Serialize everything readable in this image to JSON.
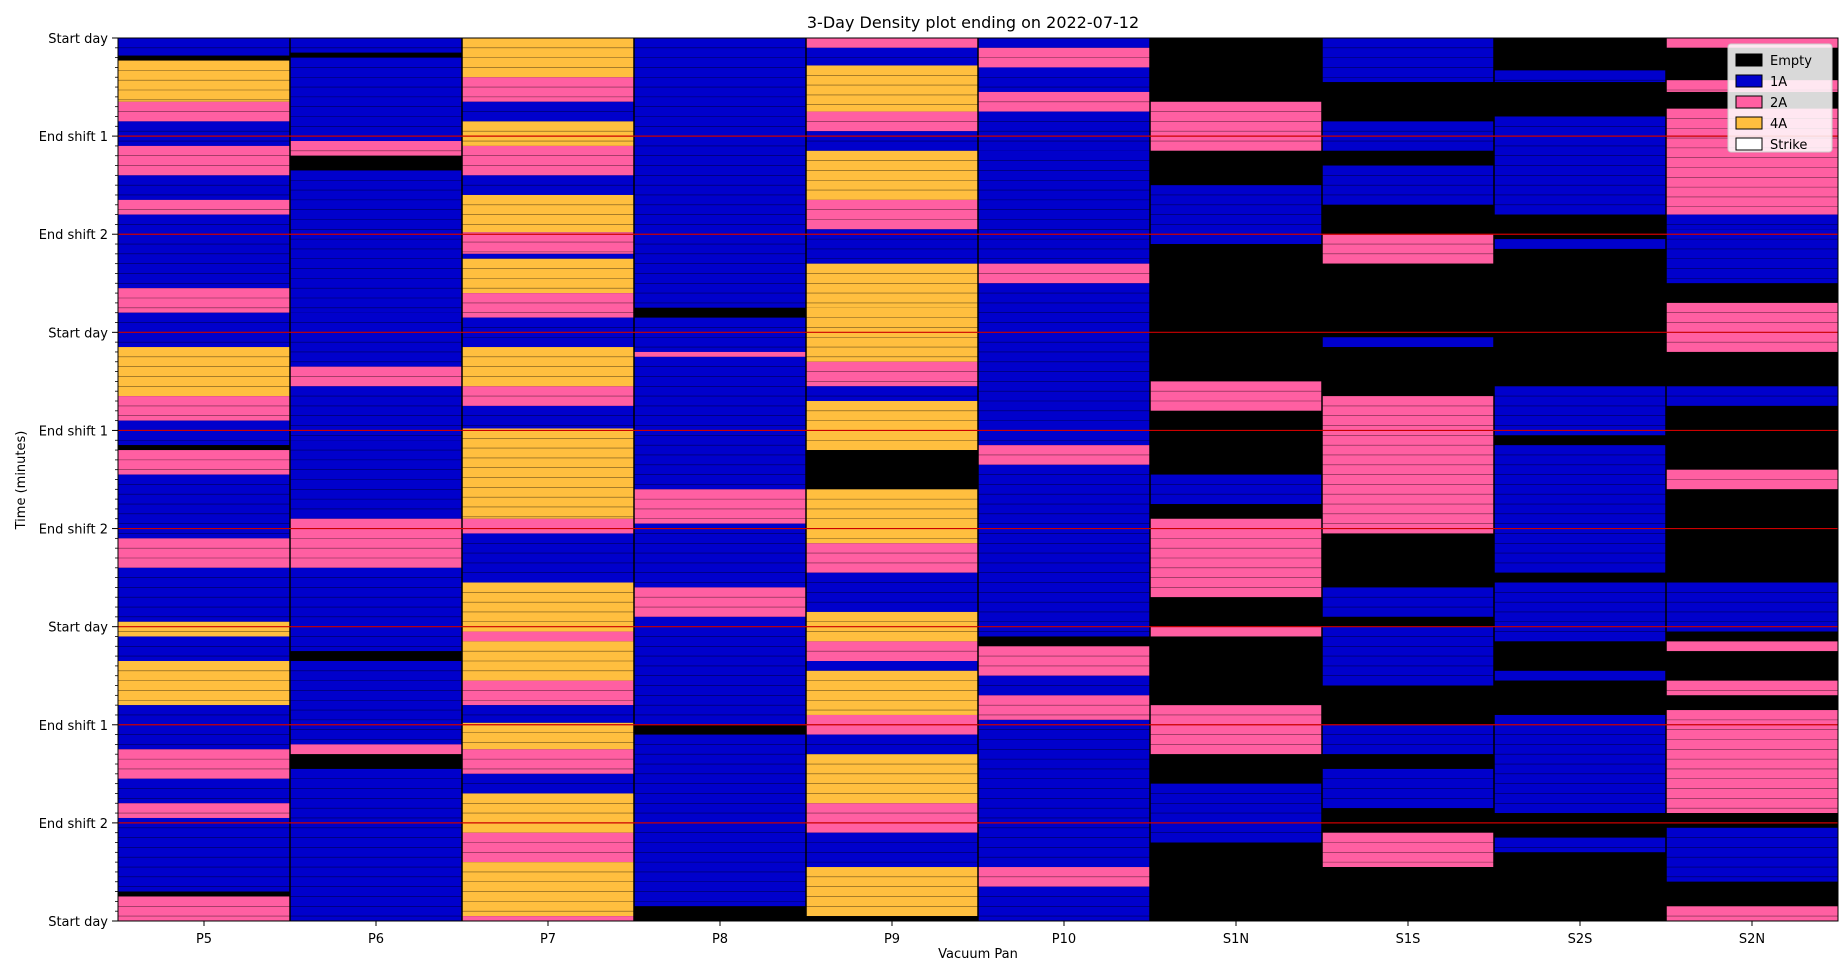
{
  "chart_data": {
    "type": "heatmap",
    "title": "3-Day Density plot ending on 2022-07-12",
    "xlabel": "Vacuum Pan",
    "ylabel": "Time (minutes)",
    "categories": [
      "P5",
      "P6",
      "P7",
      "P8",
      "P9",
      "P10",
      "S1N",
      "S1S",
      "S2S",
      "S2N"
    ],
    "y_tick_labels": [
      "Start day",
      "End shift 1",
      "End shift 2",
      "Start day",
      "End shift 1",
      "End shift 2",
      "Start day",
      "End shift 1",
      "End shift 2",
      "Start day"
    ],
    "ylim": [
      0,
      9
    ],
    "legend": {
      "position": "top-right",
      "entries": [
        {
          "label": "Empty",
          "color": "#000000"
        },
        {
          "label": "1A",
          "color": "#0000cc"
        },
        {
          "label": "2A",
          "color": "#ff5fa2"
        },
        {
          "label": "4A",
          "color": "#ffbf3f"
        },
        {
          "label": "Strike",
          "color": "#ffffff"
        }
      ]
    },
    "shift_line_color": "#cc0000",
    "series": [
      {
        "column": "P5",
        "segments": [
          [
            0,
            0.18,
            "1A"
          ],
          [
            0.18,
            0.23,
            "Empty"
          ],
          [
            0.23,
            0.65,
            "4A"
          ],
          [
            0.65,
            0.85,
            "2A"
          ],
          [
            0.85,
            1.1,
            "1A"
          ],
          [
            1.1,
            1.4,
            "2A"
          ],
          [
            1.4,
            1.65,
            "1A"
          ],
          [
            1.65,
            1.8,
            "2A"
          ],
          [
            1.8,
            2.55,
            "1A"
          ],
          [
            2.55,
            2.8,
            "2A"
          ],
          [
            2.8,
            3.15,
            "1A"
          ],
          [
            3.15,
            3.65,
            "4A"
          ],
          [
            3.65,
            3.9,
            "2A"
          ],
          [
            3.9,
            4.15,
            "1A"
          ],
          [
            4.15,
            4.2,
            "Empty"
          ],
          [
            4.2,
            4.45,
            "2A"
          ],
          [
            4.45,
            5.1,
            "1A"
          ],
          [
            5.1,
            5.4,
            "2A"
          ],
          [
            5.4,
            5.95,
            "1A"
          ],
          [
            5.95,
            6.1,
            "4A"
          ],
          [
            6.1,
            6.35,
            "1A"
          ],
          [
            6.35,
            6.8,
            "4A"
          ],
          [
            6.8,
            7.25,
            "1A"
          ],
          [
            7.25,
            7.55,
            "2A"
          ],
          [
            7.55,
            7.8,
            "1A"
          ],
          [
            7.8,
            7.95,
            "2A"
          ],
          [
            7.95,
            8.7,
            "1A"
          ],
          [
            8.7,
            8.75,
            "Empty"
          ],
          [
            8.75,
            9,
            "2A"
          ]
        ]
      },
      {
        "column": "P6",
        "segments": [
          [
            0,
            0.15,
            "1A"
          ],
          [
            0.15,
            0.2,
            "Empty"
          ],
          [
            0.2,
            1.05,
            "1A"
          ],
          [
            1.05,
            1.2,
            "2A"
          ],
          [
            1.2,
            1.35,
            "Empty"
          ],
          [
            1.35,
            2.8,
            "1A"
          ],
          [
            2.8,
            3.35,
            "1A"
          ],
          [
            3.35,
            3.55,
            "2A"
          ],
          [
            3.55,
            4.1,
            "1A"
          ],
          [
            4.1,
            4.9,
            "1A"
          ],
          [
            4.9,
            5.4,
            "2A"
          ],
          [
            5.4,
            6.25,
            "1A"
          ],
          [
            6.25,
            6.35,
            "Empty"
          ],
          [
            6.35,
            7.2,
            "1A"
          ],
          [
            7.2,
            7.3,
            "2A"
          ],
          [
            7.3,
            7.45,
            "Empty"
          ],
          [
            7.45,
            9,
            "1A"
          ]
        ]
      },
      {
        "column": "P7",
        "segments": [
          [
            0,
            0.4,
            "4A"
          ],
          [
            0.4,
            0.65,
            "2A"
          ],
          [
            0.65,
            0.85,
            "1A"
          ],
          [
            0.85,
            1.1,
            "4A"
          ],
          [
            1.1,
            1.4,
            "2A"
          ],
          [
            1.4,
            1.6,
            "1A"
          ],
          [
            1.6,
            1.98,
            "4A"
          ],
          [
            1.98,
            2.2,
            "2A"
          ],
          [
            2.2,
            2.25,
            "1A"
          ],
          [
            2.25,
            2.6,
            "4A"
          ],
          [
            2.6,
            2.85,
            "2A"
          ],
          [
            2.85,
            3.15,
            "1A"
          ],
          [
            3.15,
            3.55,
            "4A"
          ],
          [
            3.55,
            3.75,
            "2A"
          ],
          [
            3.75,
            3.98,
            "1A"
          ],
          [
            3.98,
            4.9,
            "4A"
          ],
          [
            4.9,
            5.05,
            "2A"
          ],
          [
            5.05,
            5.55,
            "1A"
          ],
          [
            5.55,
            6.05,
            "4A"
          ],
          [
            6.05,
            6.15,
            "2A"
          ],
          [
            6.15,
            6.55,
            "4A"
          ],
          [
            6.55,
            6.8,
            "2A"
          ],
          [
            6.8,
            6.98,
            "1A"
          ],
          [
            6.98,
            7.25,
            "4A"
          ],
          [
            7.25,
            7.5,
            "2A"
          ],
          [
            7.5,
            7.7,
            "1A"
          ],
          [
            7.7,
            8.1,
            "4A"
          ],
          [
            8.1,
            8.4,
            "2A"
          ],
          [
            8.4,
            8.95,
            "4A"
          ],
          [
            8.95,
            9,
            "2A"
          ]
        ]
      },
      {
        "column": "P8",
        "segments": [
          [
            0,
            2.75,
            "1A"
          ],
          [
            2.75,
            2.85,
            "Empty"
          ],
          [
            2.85,
            3.2,
            "1A"
          ],
          [
            3.2,
            3.25,
            "2A"
          ],
          [
            3.25,
            4.6,
            "1A"
          ],
          [
            4.6,
            4.95,
            "2A"
          ],
          [
            4.95,
            5.6,
            "1A"
          ],
          [
            5.6,
            5.9,
            "2A"
          ],
          [
            5.9,
            7.0,
            "1A"
          ],
          [
            7.0,
            7.1,
            "Empty"
          ],
          [
            7.1,
            8.85,
            "1A"
          ],
          [
            8.85,
            9,
            "Empty"
          ]
        ]
      },
      {
        "column": "P9",
        "segments": [
          [
            0,
            0.1,
            "2A"
          ],
          [
            0.1,
            0.28,
            "1A"
          ],
          [
            0.28,
            0.75,
            "4A"
          ],
          [
            0.75,
            0.95,
            "2A"
          ],
          [
            0.95,
            1.15,
            "1A"
          ],
          [
            1.15,
            1.65,
            "4A"
          ],
          [
            1.65,
            1.95,
            "2A"
          ],
          [
            1.95,
            2.3,
            "1A"
          ],
          [
            2.3,
            2.75,
            "4A"
          ],
          [
            2.75,
            3.3,
            "4A"
          ],
          [
            3.3,
            3.55,
            "2A"
          ],
          [
            3.55,
            3.7,
            "1A"
          ],
          [
            3.7,
            4.2,
            "4A"
          ],
          [
            4.2,
            4.6,
            "Empty"
          ],
          [
            4.6,
            5.15,
            "4A"
          ],
          [
            5.15,
            5.45,
            "2A"
          ],
          [
            5.45,
            5.85,
            "1A"
          ],
          [
            5.85,
            6.15,
            "4A"
          ],
          [
            6.15,
            6.35,
            "2A"
          ],
          [
            6.35,
            6.45,
            "1A"
          ],
          [
            6.45,
            6.9,
            "4A"
          ],
          [
            6.9,
            7.1,
            "2A"
          ],
          [
            7.1,
            7.3,
            "1A"
          ],
          [
            7.3,
            7.8,
            "4A"
          ],
          [
            7.8,
            8.1,
            "2A"
          ],
          [
            8.1,
            8.45,
            "1A"
          ],
          [
            8.45,
            8.95,
            "4A"
          ],
          [
            8.95,
            9,
            "Empty"
          ]
        ]
      },
      {
        "column": "P10",
        "segments": [
          [
            0,
            0.1,
            "1A"
          ],
          [
            0.1,
            0.3,
            "2A"
          ],
          [
            0.3,
            0.55,
            "1A"
          ],
          [
            0.55,
            0.75,
            "2A"
          ],
          [
            0.75,
            1.15,
            "1A"
          ],
          [
            1.15,
            2.3,
            "1A"
          ],
          [
            2.3,
            2.5,
            "2A"
          ],
          [
            2.5,
            4.15,
            "1A"
          ],
          [
            4.15,
            4.35,
            "2A"
          ],
          [
            4.35,
            6.1,
            "1A"
          ],
          [
            6.1,
            6.2,
            "Empty"
          ],
          [
            6.2,
            6.5,
            "2A"
          ],
          [
            6.5,
            6.7,
            "1A"
          ],
          [
            6.7,
            6.95,
            "2A"
          ],
          [
            6.95,
            8.45,
            "1A"
          ],
          [
            8.45,
            8.65,
            "2A"
          ],
          [
            8.65,
            9,
            "1A"
          ]
        ]
      },
      {
        "column": "S1N",
        "segments": [
          [
            0,
            0.65,
            "Empty"
          ],
          [
            0.65,
            1.15,
            "2A"
          ],
          [
            1.15,
            1.5,
            "Empty"
          ],
          [
            1.5,
            2.1,
            "1A"
          ],
          [
            2.1,
            3.5,
            "Empty"
          ],
          [
            3.5,
            3.8,
            "2A"
          ],
          [
            3.8,
            4.45,
            "Empty"
          ],
          [
            4.45,
            4.75,
            "1A"
          ],
          [
            4.75,
            4.9,
            "Empty"
          ],
          [
            4.9,
            5.7,
            "2A"
          ],
          [
            5.7,
            6.0,
            "Empty"
          ],
          [
            6.0,
            6.1,
            "2A"
          ],
          [
            6.1,
            6.8,
            "Empty"
          ],
          [
            6.8,
            7.3,
            "2A"
          ],
          [
            7.3,
            7.6,
            "Empty"
          ],
          [
            7.6,
            8.2,
            "1A"
          ],
          [
            8.2,
            9,
            "Empty"
          ]
        ]
      },
      {
        "column": "S1S",
        "segments": [
          [
            0,
            0.45,
            "1A"
          ],
          [
            0.45,
            0.85,
            "Empty"
          ],
          [
            0.85,
            1.15,
            "1A"
          ],
          [
            1.15,
            1.3,
            "Empty"
          ],
          [
            1.3,
            1.7,
            "1A"
          ],
          [
            1.7,
            2.0,
            "Empty"
          ],
          [
            2.0,
            2.3,
            "2A"
          ],
          [
            2.3,
            3.05,
            "Empty"
          ],
          [
            3.05,
            3.15,
            "1A"
          ],
          [
            3.15,
            3.65,
            "Empty"
          ],
          [
            3.65,
            5.05,
            "2A"
          ],
          [
            5.05,
            5.6,
            "Empty"
          ],
          [
            5.6,
            5.9,
            "1A"
          ],
          [
            5.9,
            6.0,
            "Empty"
          ],
          [
            6.0,
            6.6,
            "1A"
          ],
          [
            6.6,
            7.0,
            "Empty"
          ],
          [
            7.0,
            7.3,
            "1A"
          ],
          [
            7.3,
            7.45,
            "Empty"
          ],
          [
            7.45,
            7.85,
            "1A"
          ],
          [
            7.85,
            8.1,
            "Empty"
          ],
          [
            8.1,
            8.45,
            "2A"
          ],
          [
            8.45,
            9,
            "Empty"
          ]
        ]
      },
      {
        "column": "S2S",
        "segments": [
          [
            0,
            0.33,
            "Empty"
          ],
          [
            0.33,
            0.45,
            "1A"
          ],
          [
            0.45,
            0.8,
            "Empty"
          ],
          [
            0.8,
            1.8,
            "1A"
          ],
          [
            1.8,
            2.05,
            "Empty"
          ],
          [
            2.05,
            2.15,
            "1A"
          ],
          [
            2.15,
            3.55,
            "Empty"
          ],
          [
            3.55,
            4.05,
            "1A"
          ],
          [
            4.05,
            4.15,
            "Empty"
          ],
          [
            4.15,
            5.45,
            "1A"
          ],
          [
            5.45,
            5.55,
            "Empty"
          ],
          [
            5.55,
            6.15,
            "1A"
          ],
          [
            6.15,
            6.45,
            "Empty"
          ],
          [
            6.45,
            6.55,
            "1A"
          ],
          [
            6.55,
            6.9,
            "Empty"
          ],
          [
            6.9,
            7.9,
            "1A"
          ],
          [
            7.9,
            8.15,
            "Empty"
          ],
          [
            8.15,
            8.3,
            "1A"
          ],
          [
            8.3,
            9,
            "Empty"
          ]
        ]
      },
      {
        "column": "S2N",
        "segments": [
          [
            0,
            0.1,
            "2A"
          ],
          [
            0.1,
            0.43,
            "Empty"
          ],
          [
            0.43,
            0.55,
            "2A"
          ],
          [
            0.55,
            0.72,
            "Empty"
          ],
          [
            0.72,
            1.8,
            "2A"
          ],
          [
            1.8,
            1.95,
            "1A"
          ],
          [
            1.95,
            2.5,
            "1A"
          ],
          [
            2.5,
            2.7,
            "Empty"
          ],
          [
            2.7,
            3.2,
            "2A"
          ],
          [
            3.2,
            3.55,
            "Empty"
          ],
          [
            3.55,
            3.75,
            "1A"
          ],
          [
            3.75,
            4.4,
            "Empty"
          ],
          [
            4.4,
            4.6,
            "2A"
          ],
          [
            4.6,
            5.55,
            "Empty"
          ],
          [
            5.55,
            6.05,
            "1A"
          ],
          [
            6.05,
            6.15,
            "Empty"
          ],
          [
            6.15,
            6.25,
            "2A"
          ],
          [
            6.25,
            6.55,
            "Empty"
          ],
          [
            6.55,
            6.7,
            "2A"
          ],
          [
            6.7,
            6.85,
            "Empty"
          ],
          [
            6.85,
            7.9,
            "2A"
          ],
          [
            7.9,
            8.05,
            "Empty"
          ],
          [
            8.05,
            8.6,
            "1A"
          ],
          [
            8.6,
            8.85,
            "Empty"
          ],
          [
            8.85,
            9,
            "2A"
          ]
        ]
      }
    ]
  }
}
